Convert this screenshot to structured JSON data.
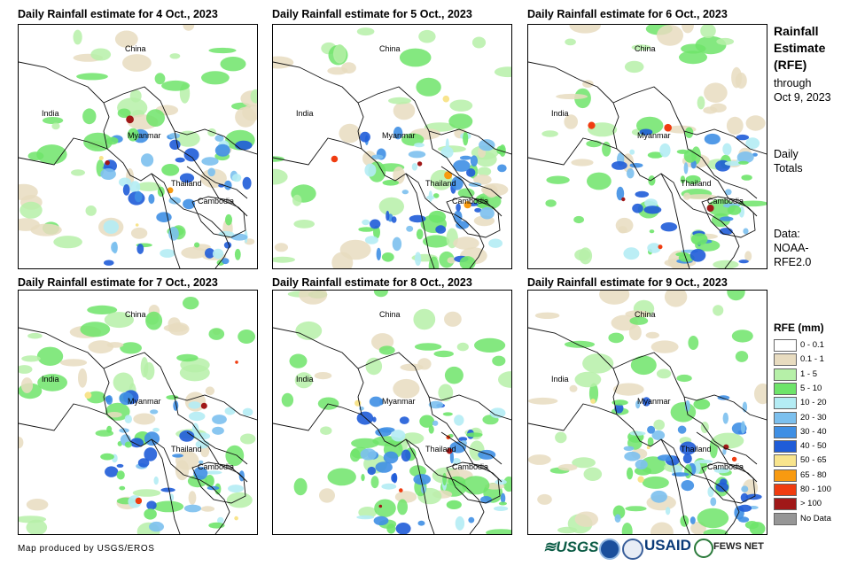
{
  "panels": [
    {
      "title": "Daily Rainfall estimate for 4 Oct., 2023",
      "seed": 4,
      "labels": {
        "china": "China",
        "india": "India",
        "myanmar": "Myanmar",
        "thailand": "Thailand",
        "cambodia": "Cambodia"
      }
    },
    {
      "title": "Daily Rainfall estimate for 5 Oct., 2023",
      "seed": 5,
      "labels": {
        "china": "China",
        "india": "India",
        "myanmar": "Myanmar",
        "thailand": "Thailand",
        "cambodia": "Cambodia"
      }
    },
    {
      "title": "Daily Rainfall estimate for 6 Oct., 2023",
      "seed": 6,
      "labels": {
        "china": "China",
        "india": "India",
        "myanmar": "Myanmar",
        "thailand": "Thailand",
        "cambodia": "Cambodia"
      }
    },
    {
      "title": "Daily Rainfall estimate for 7 Oct., 2023",
      "seed": 7,
      "labels": {
        "china": "China",
        "india": "India",
        "myanmar": "Myanmar",
        "thailand": "Thailand",
        "cambodia": "Cambodia"
      }
    },
    {
      "title": "Daily Rainfall estimate for 8 Oct., 2023",
      "seed": 8,
      "labels": {
        "china": "China",
        "india": "India",
        "myanmar": "Myanmar",
        "thailand": "Thailand",
        "cambodia": "Cambodia"
      }
    },
    {
      "title": "Daily Rainfall estimate for 9 Oct., 2023",
      "seed": 9,
      "labels": {
        "china": "China",
        "india": "India",
        "myanmar": "Myanmar",
        "thailand": "Thailand",
        "cambodia": "Cambodia"
      }
    }
  ],
  "sidebar": {
    "title_line1": "Rainfall",
    "title_line2": "Estimate",
    "title_line3": "(RFE)",
    "through": "through",
    "date": "Oct 9, 2023",
    "daily": "Daily",
    "totals": "Totals",
    "data_label": "Data:",
    "data_src1": "NOAA-",
    "data_src2": "RFE2.0"
  },
  "legend": {
    "title": "RFE (mm)",
    "items": [
      {
        "label": "0 - 0.1",
        "color": "#ffffff"
      },
      {
        "label": "0.1 - 1",
        "color": "#e8dcc0"
      },
      {
        "label": "1 - 5",
        "color": "#b6f0a8"
      },
      {
        "label": "5 - 10",
        "color": "#6ee46a"
      },
      {
        "label": "10 - 20",
        "color": "#b4ecf4"
      },
      {
        "label": "20 - 30",
        "color": "#7cc0ee"
      },
      {
        "label": "30 - 40",
        "color": "#3f8fe4"
      },
      {
        "label": "40 - 50",
        "color": "#1f5cd8"
      },
      {
        "label": "50 - 65",
        "color": "#f8e48c"
      },
      {
        "label": "65 - 80",
        "color": "#f89a10"
      },
      {
        "label": "80 - 100",
        "color": "#f03c10"
      },
      {
        "label": "> 100",
        "color": "#a01818"
      },
      {
        "label": "No Data",
        "color": "#969696"
      }
    ]
  },
  "footer": {
    "credit": "Map produced by USGS/EROS",
    "usgs": "≋USGS",
    "usaid": "USAID",
    "fewsnet": "FEWS NET"
  }
}
